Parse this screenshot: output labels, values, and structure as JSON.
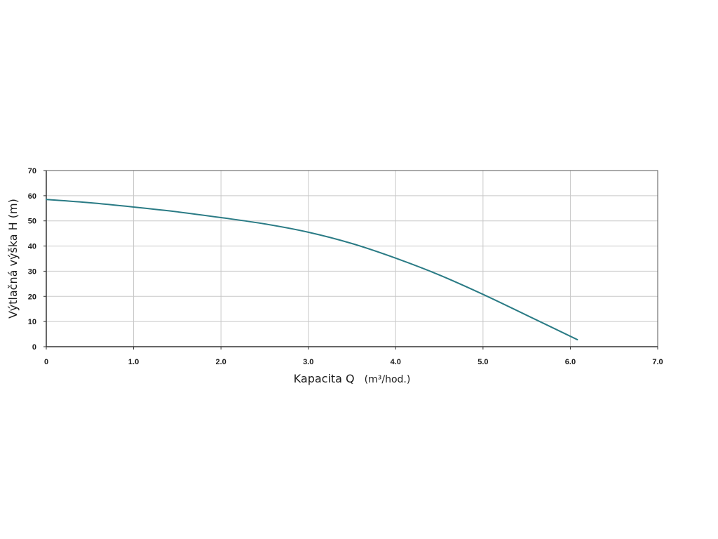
{
  "chart_data": {
    "type": "line",
    "xlabel": "Kapacita Q",
    "xunit": "(m³/hod.)",
    "ylabel": "Výtlačná výška H (m)",
    "xlim": [
      0,
      7
    ],
    "ylim": [
      0,
      70
    ],
    "x_ticks": [
      "0",
      "1.0",
      "2.0",
      "3.0",
      "4.0",
      "5.0",
      "6.0",
      "7.0"
    ],
    "y_ticks": [
      "0",
      "10",
      "20",
      "30",
      "40",
      "50",
      "60",
      "70"
    ],
    "grid": true,
    "legend": "none",
    "series": [
      {
        "color": "#2a7b85",
        "x": [
          0,
          0.5,
          1.0,
          1.5,
          2.0,
          2.5,
          3.0,
          3.5,
          4.0,
          4.5,
          5.0,
          5.5,
          6.08
        ],
        "y": [
          58.5,
          57.2,
          55.5,
          53.6,
          51.3,
          48.8,
          45.5,
          41.0,
          35.2,
          28.5,
          20.8,
          12.5,
          2.8
        ]
      }
    ]
  }
}
